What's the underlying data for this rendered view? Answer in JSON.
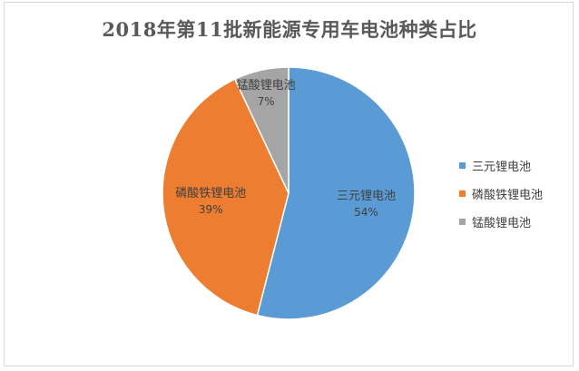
{
  "chart_data": {
    "type": "pie",
    "title": "2018年第11批新能源专用车电池种类占比",
    "categories": [
      "三元锂电池",
      "磷酸铁锂电池",
      "锰酸锂电池"
    ],
    "values": [
      54,
      39,
      7
    ],
    "data_labels": [
      "54%",
      "39%",
      "7%"
    ],
    "colors": [
      "#5B9BD5",
      "#ED7D31",
      "#A5A5A5"
    ],
    "legend_position": "right",
    "start_angle_deg": 0,
    "direction": "clockwise"
  }
}
